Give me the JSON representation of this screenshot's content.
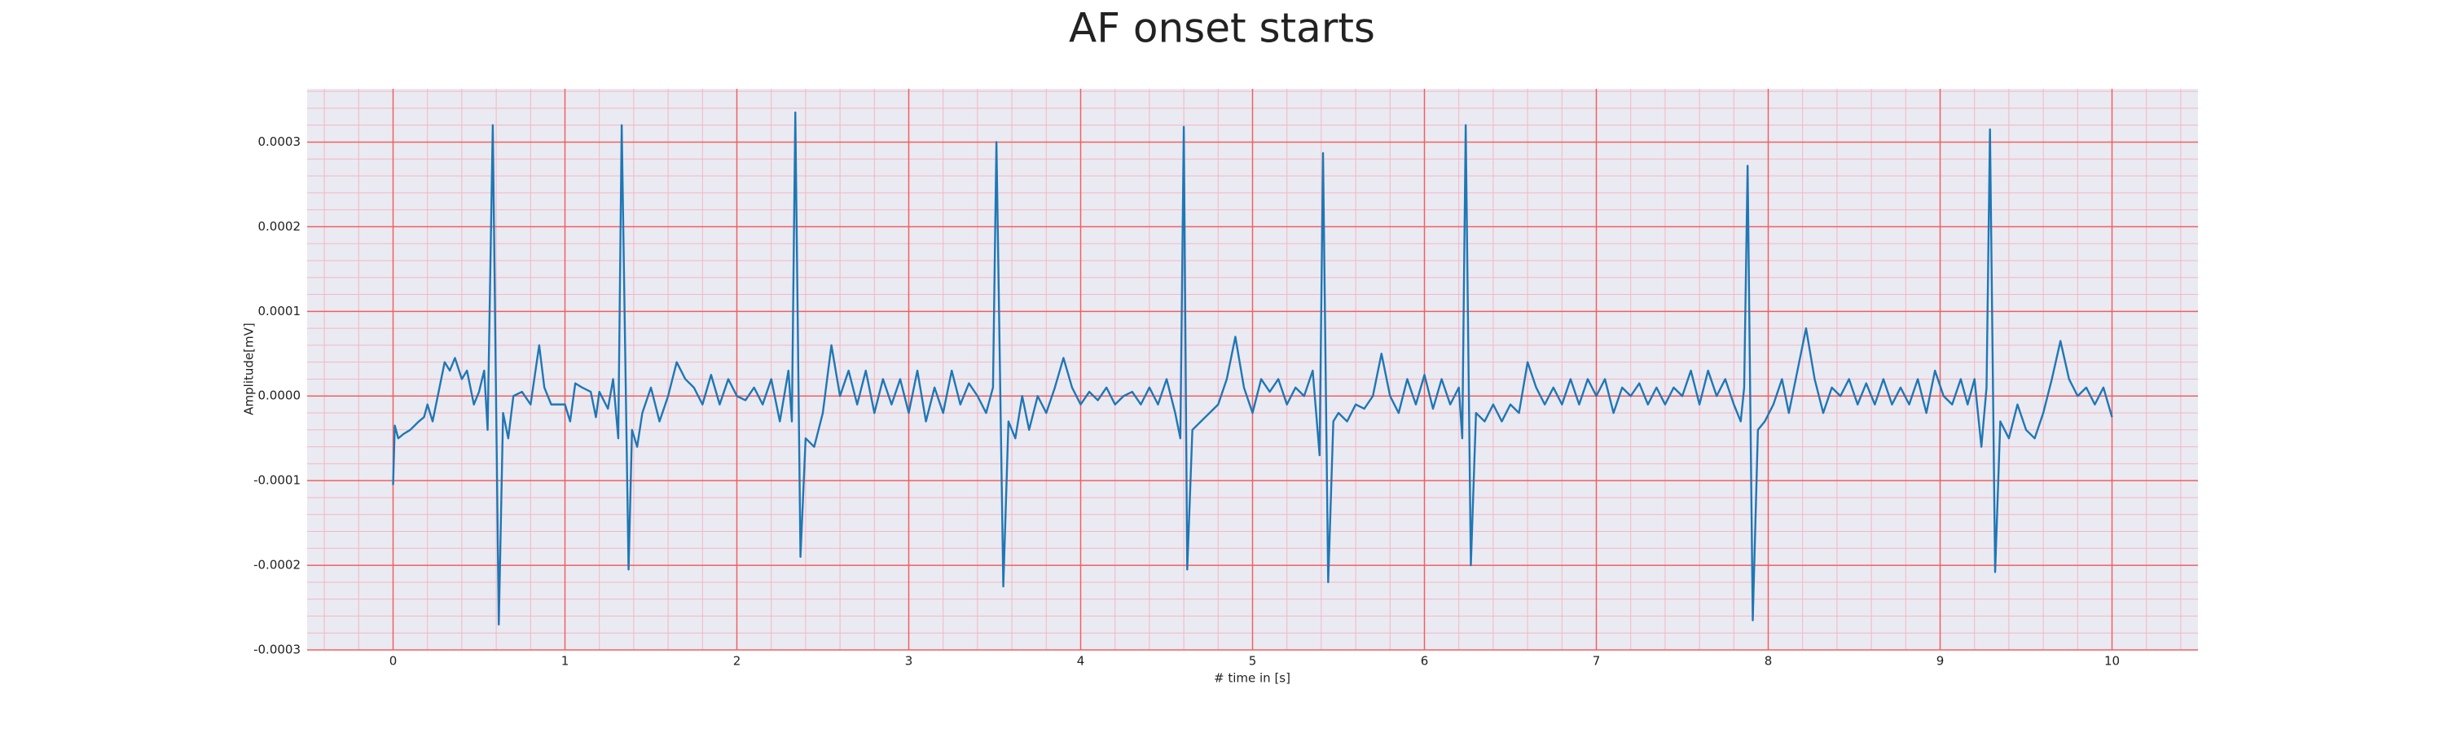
{
  "chart_data": {
    "type": "line",
    "title": "AF onset starts",
    "x_label": "# time in [s]",
    "y_label": "Amplitude[mV]",
    "x": [
      0,
      0.01,
      0.03,
      0.06,
      0.1,
      0.15,
      0.18,
      0.2,
      0.23,
      0.27,
      0.3,
      0.33,
      0.36,
      0.4,
      0.43,
      0.47,
      0.5,
      0.53,
      0.55,
      0.58,
      0.615,
      0.64,
      0.67,
      0.7,
      0.75,
      0.8,
      0.85,
      0.88,
      0.92,
      0.97,
      1.0,
      1.03,
      1.06,
      1.1,
      1.15,
      1.18,
      1.2,
      1.25,
      1.28,
      1.31,
      1.33,
      1.37,
      1.39,
      1.42,
      1.45,
      1.5,
      1.55,
      1.6,
      1.65,
      1.7,
      1.75,
      1.8,
      1.85,
      1.9,
      1.95,
      2.0,
      2.05,
      2.1,
      2.15,
      2.2,
      2.25,
      2.3,
      2.32,
      2.34,
      2.37,
      2.4,
      2.45,
      2.5,
      2.55,
      2.6,
      2.65,
      2.7,
      2.75,
      2.8,
      2.85,
      2.9,
      2.95,
      3.0,
      3.05,
      3.1,
      3.15,
      3.2,
      3.25,
      3.3,
      3.35,
      3.4,
      3.45,
      3.49,
      3.51,
      3.55,
      3.58,
      3.62,
      3.66,
      3.7,
      3.75,
      3.8,
      3.85,
      3.9,
      3.95,
      4.0,
      4.05,
      4.1,
      4.15,
      4.2,
      4.25,
      4.3,
      4.35,
      4.4,
      4.45,
      4.5,
      4.55,
      4.58,
      4.6,
      4.62,
      4.65,
      4.7,
      4.75,
      4.8,
      4.85,
      4.9,
      4.95,
      5.0,
      5.05,
      5.1,
      5.15,
      5.2,
      5.25,
      5.3,
      5.35,
      5.39,
      5.41,
      5.44,
      5.47,
      5.5,
      5.55,
      5.6,
      5.65,
      5.7,
      5.75,
      5.8,
      5.85,
      5.9,
      5.95,
      6.0,
      6.05,
      6.1,
      6.15,
      6.2,
      6.22,
      6.24,
      6.27,
      6.3,
      6.35,
      6.4,
      6.45,
      6.5,
      6.55,
      6.6,
      6.65,
      6.7,
      6.75,
      6.8,
      6.85,
      6.9,
      6.95,
      7.0,
      7.05,
      7.1,
      7.15,
      7.2,
      7.25,
      7.3,
      7.35,
      7.4,
      7.45,
      7.5,
      7.55,
      7.6,
      7.65,
      7.7,
      7.75,
      7.8,
      7.84,
      7.86,
      7.88,
      7.91,
      7.94,
      7.98,
      8.03,
      8.08,
      8.12,
      8.17,
      8.22,
      8.27,
      8.32,
      8.37,
      8.42,
      8.47,
      8.52,
      8.57,
      8.62,
      8.67,
      8.72,
      8.77,
      8.82,
      8.87,
      8.92,
      8.97,
      9.02,
      9.07,
      9.12,
      9.16,
      9.2,
      9.24,
      9.27,
      9.29,
      9.32,
      9.35,
      9.4,
      9.45,
      9.5,
      9.55,
      9.6,
      9.65,
      9.7,
      9.75,
      9.8,
      9.85,
      9.9,
      9.95,
      10.0
    ],
    "values": [
      -0.000105,
      -3.5e-05,
      -5e-05,
      -4.5e-05,
      -4e-05,
      -3e-05,
      -2.5e-05,
      -1e-05,
      -3e-05,
      1e-05,
      4e-05,
      3e-05,
      4.5e-05,
      2e-05,
      3e-05,
      -1e-05,
      5e-06,
      3e-05,
      -4e-05,
      0.00032,
      -0.00027,
      -2e-05,
      -5e-05,
      0.0,
      5e-06,
      -1e-05,
      6e-05,
      1e-05,
      -1e-05,
      -1e-05,
      -1e-05,
      -3e-05,
      1.5e-05,
      1e-05,
      5e-06,
      -2.5e-05,
      5e-06,
      -1.5e-05,
      2e-05,
      -5e-05,
      0.00032,
      -0.000205,
      -4e-05,
      -6e-05,
      -2e-05,
      1e-05,
      -3e-05,
      0.0,
      4e-05,
      2e-05,
      1e-05,
      -1e-05,
      2.5e-05,
      -1e-05,
      2e-05,
      0.0,
      -5e-06,
      1e-05,
      -1e-05,
      2e-05,
      -3e-05,
      3e-05,
      -3e-05,
      0.000335,
      -0.00019,
      -5e-05,
      -6e-05,
      -2e-05,
      6e-05,
      0.0,
      3e-05,
      -1e-05,
      3e-05,
      -2e-05,
      2e-05,
      -1e-05,
      2e-05,
      -2e-05,
      3e-05,
      -3e-05,
      1e-05,
      -2e-05,
      3e-05,
      -1e-05,
      1.5e-05,
      0.0,
      -2e-05,
      1e-05,
      0.0003,
      -0.000225,
      -3e-05,
      -5e-05,
      0.0,
      -4e-05,
      0.0,
      -2e-05,
      1e-05,
      4.5e-05,
      1e-05,
      -1e-05,
      5e-06,
      -5e-06,
      1e-05,
      -1e-05,
      0.0,
      5e-06,
      -1e-05,
      1e-05,
      -1e-05,
      2e-05,
      -2e-05,
      -5e-05,
      0.000318,
      -0.000205,
      -4e-05,
      -3e-05,
      -2e-05,
      -1e-05,
      2e-05,
      7e-05,
      1e-05,
      -2e-05,
      2e-05,
      5e-06,
      2e-05,
      -1e-05,
      1e-05,
      0.0,
      3e-05,
      -7e-05,
      0.000287,
      -0.00022,
      -3e-05,
      -2e-05,
      -3e-05,
      -1e-05,
      -1.5e-05,
      0.0,
      5e-05,
      0.0,
      -2e-05,
      2e-05,
      -1e-05,
      2.5e-05,
      -1.5e-05,
      2e-05,
      -1e-05,
      1e-05,
      -5e-05,
      0.00032,
      -0.0002,
      -2e-05,
      -3e-05,
      -1e-05,
      -3e-05,
      -1e-05,
      -2e-05,
      4e-05,
      1e-05,
      -1e-05,
      1e-05,
      -1e-05,
      2e-05,
      -1e-05,
      2e-05,
      0.0,
      2e-05,
      -2e-05,
      1e-05,
      0.0,
      1.5e-05,
      -1e-05,
      1e-05,
      -1e-05,
      1e-05,
      0.0,
      3e-05,
      -1e-05,
      3e-05,
      0.0,
      2e-05,
      -1e-05,
      -3e-05,
      1e-05,
      0.000272,
      -0.000265,
      -4e-05,
      -3e-05,
      -1e-05,
      2e-05,
      -2e-05,
      3e-05,
      8e-05,
      2e-05,
      -2e-05,
      1e-05,
      0.0,
      2e-05,
      -1e-05,
      1.5e-05,
      -1e-05,
      2e-05,
      -1e-05,
      1e-05,
      -1e-05,
      2e-05,
      -2e-05,
      3e-05,
      0.0,
      -1e-05,
      2e-05,
      -1e-05,
      2e-05,
      -6e-05,
      1e-05,
      0.000315,
      -0.000208,
      -3e-05,
      -5e-05,
      -1e-05,
      -4e-05,
      -5e-05,
      -2e-05,
      2e-05,
      6.5e-05,
      2e-05,
      0.0,
      1e-05,
      -1e-05,
      1e-05,
      -2.5e-05
    ],
    "color": "#1f77b4",
    "xlim": [
      -0.5,
      10.5
    ],
    "xticks": [
      0,
      1,
      2,
      3,
      4,
      5,
      6,
      7,
      8,
      9,
      10
    ],
    "ylim": [
      -0.0003,
      0.000363
    ],
    "yticks": [
      -0.0003,
      -0.0002,
      -0.0001,
      {
        "value": 0,
        "label": "0.0000"
      },
      0.0001,
      0.0002,
      0.0003
    ],
    "grid": true,
    "minor_grid_divisions": 5
  }
}
